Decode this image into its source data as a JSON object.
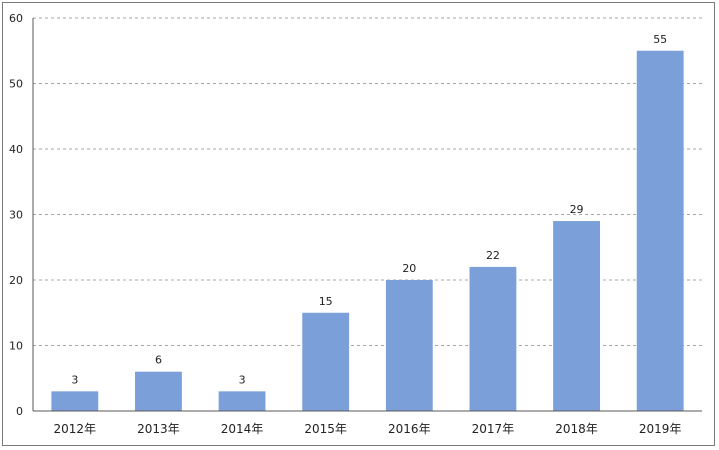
{
  "chart_data": {
    "type": "bar",
    "categories": [
      "2012年",
      "2013年",
      "2014年",
      "2015年",
      "2016年",
      "2017年",
      "2018年",
      "2019年"
    ],
    "values": [
      3,
      6,
      3,
      15,
      20,
      22,
      29,
      55
    ],
    "ylim": [
      0,
      60
    ],
    "yticks": [
      0,
      10,
      20,
      30,
      40,
      50,
      60
    ],
    "grid": true,
    "data_labels": true,
    "bar_color": "#7b9fd9",
    "grid_color": "#a6a6a6",
    "axis_color": "#595959"
  }
}
